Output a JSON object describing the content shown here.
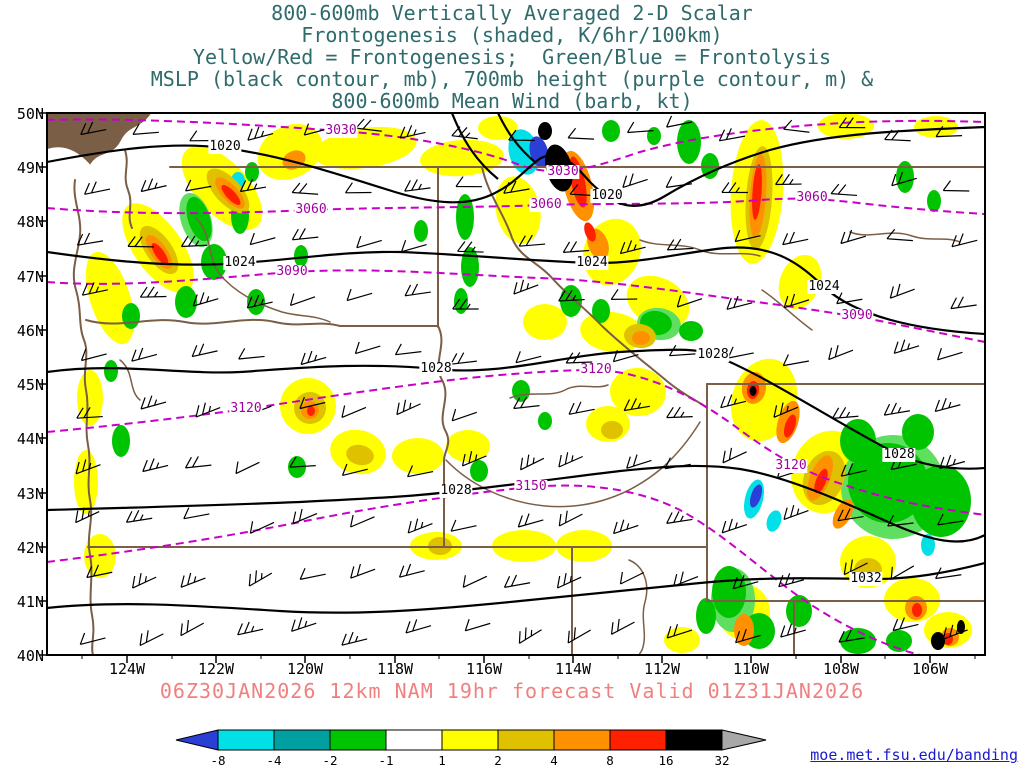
{
  "title": {
    "lines": [
      "800-600mb Vertically Averaged 2-D Scalar",
      "Frontogenesis (shaded, K/6hr/100km)",
      "Yellow/Red = Frontogenesis;  Green/Blue = Frontolysis",
      "MSLP (black contour, mb), 700mb height (purple contour, m) &",
      "800-600mb Mean Wind (barb, kt)"
    ]
  },
  "map": {
    "lat_labels": [
      "50N",
      "49N",
      "48N",
      "47N",
      "46N",
      "45N",
      "44N",
      "43N",
      "42N",
      "41N",
      "40N"
    ],
    "lon_labels": [
      "124W",
      "122W",
      "120W",
      "118W",
      "116W",
      "114W",
      "112W",
      "110W",
      "108W",
      "106W"
    ],
    "contour_labels": [
      {
        "text": "1020",
        "kind": "mslp"
      },
      {
        "text": "1020",
        "kind": "mslp"
      },
      {
        "text": "1024",
        "kind": "mslp"
      },
      {
        "text": "1024",
        "kind": "mslp"
      },
      {
        "text": "1024",
        "kind": "mslp"
      },
      {
        "text": "1028",
        "kind": "mslp"
      },
      {
        "text": "1028",
        "kind": "mslp"
      },
      {
        "text": "1028",
        "kind": "mslp"
      },
      {
        "text": "1028",
        "kind": "mslp"
      },
      {
        "text": "1032",
        "kind": "mslp"
      },
      {
        "text": "3030",
        "kind": "height"
      },
      {
        "text": "3030",
        "kind": "height"
      },
      {
        "text": "3060",
        "kind": "height"
      },
      {
        "text": "3060",
        "kind": "height"
      },
      {
        "text": "3060",
        "kind": "height"
      },
      {
        "text": "3090",
        "kind": "height"
      },
      {
        "text": "3090",
        "kind": "height"
      },
      {
        "text": "3120",
        "kind": "height"
      },
      {
        "text": "3120",
        "kind": "height"
      },
      {
        "text": "3120",
        "kind": "height"
      },
      {
        "text": "3150",
        "kind": "height"
      }
    ]
  },
  "caption": {
    "text": "06Z30JAN2026 12km NAM 19hr forecast Valid 01Z31JAN2026"
  },
  "colorbar": {
    "labels": [
      "-8",
      "-4",
      "-2",
      "-1",
      "1",
      "2",
      "4",
      "8",
      "16",
      "32"
    ],
    "colors": [
      "#2b3fd6",
      "#00e0e6",
      "#00a0a0",
      "#00c400",
      "#ffffff",
      "#ffff00",
      "#dfc100",
      "#ff9000",
      "#ff2000",
      "#000000",
      "#a8a8a8"
    ]
  },
  "footer": {
    "link": "moe.met.fsu.edu/banding"
  },
  "style_colors": {
    "title_text": "#2f6b6b",
    "caption_text": "#f08080",
    "mslp_contour": "#000000",
    "height_contour": "#c800c8",
    "state_border": "#7b5e46",
    "link_text": "#1a1acc"
  }
}
